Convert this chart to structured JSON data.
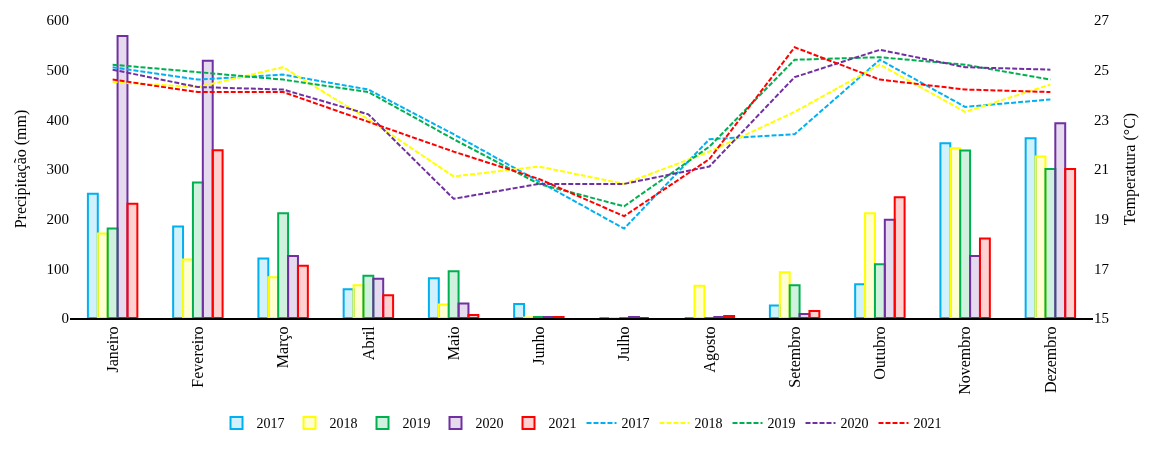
{
  "chart_data": {
    "type": "bar",
    "ylabel": "Precipitação (mm)",
    "y2label": "Temperatura (°C)",
    "categories": [
      "Janeiro",
      "Fevereiro",
      "Março",
      "Abril",
      "Maio",
      "Junho",
      "Julho",
      "Agosto",
      "Setembro",
      "Outubro",
      "Novembro",
      "Dezembro"
    ],
    "ylim": [
      0,
      600
    ],
    "yticks": [
      0,
      100,
      200,
      300,
      400,
      500,
      600
    ],
    "y2lim": [
      15,
      27
    ],
    "y2ticks": [
      15,
      17,
      19,
      21,
      23,
      25,
      27
    ],
    "legend": "bottom",
    "series": [
      {
        "name": "2017",
        "color": "#00b0f0",
        "values": [
          250,
          184,
          120,
          58,
          80,
          28,
          0,
          0,
          25,
          68,
          352,
          362
        ]
      },
      {
        "name": "2018",
        "color": "#ffff00",
        "values": [
          170,
          118,
          82,
          66,
          27,
          1,
          0,
          65,
          92,
          211,
          342,
          325
        ]
      },
      {
        "name": "2019",
        "color": "#00b050",
        "values": [
          180,
          273,
          211,
          85,
          94,
          2,
          0,
          0,
          66,
          108,
          337,
          300
        ]
      },
      {
        "name": "2020",
        "color": "#7030a0",
        "values": [
          568,
          518,
          125,
          79,
          29,
          2,
          2,
          2,
          8,
          198,
          125,
          392
        ]
      },
      {
        "name": "2021",
        "color": "#ff0000",
        "values": [
          230,
          338,
          105,
          46,
          6,
          2,
          0,
          4,
          14,
          243,
          160,
          300
        ]
      },
      {
        "name": "2017",
        "type": "line",
        "axis": "y2",
        "line_style": "dashed",
        "color": "#00b0f0",
        "values": [
          25.1,
          24.6,
          24.8,
          24.2,
          22.4,
          20.5,
          18.6,
          22.2,
          22.4,
          25.4,
          23.5,
          23.8
        ]
      },
      {
        "name": "2018",
        "type": "line",
        "axis": "y2",
        "line_style": "dashed",
        "color": "#ffff00",
        "values": [
          24.5,
          24.3,
          25.1,
          23.0,
          20.7,
          21.1,
          20.4,
          21.7,
          23.3,
          25.2,
          23.3,
          24.4
        ]
      },
      {
        "name": "2019",
        "type": "line",
        "axis": "y2",
        "line_style": "dashed",
        "color": "#00b050",
        "values": [
          25.2,
          24.9,
          24.6,
          24.1,
          22.2,
          20.4,
          19.5,
          21.9,
          25.4,
          25.5,
          25.2,
          24.6
        ]
      },
      {
        "name": "2020",
        "type": "line",
        "axis": "y2",
        "line_style": "dashed",
        "color": "#7030a0",
        "values": [
          25.0,
          24.3,
          24.2,
          23.2,
          19.8,
          20.4,
          20.4,
          21.1,
          24.7,
          25.8,
          25.1,
          25.0
        ]
      },
      {
        "name": "2021",
        "type": "line",
        "axis": "y2",
        "line_style": "dashed",
        "color": "#ff0000",
        "values": [
          24.6,
          24.1,
          24.1,
          22.9,
          21.7,
          20.6,
          19.1,
          21.4,
          25.9,
          24.6,
          24.2,
          24.1
        ]
      }
    ]
  }
}
